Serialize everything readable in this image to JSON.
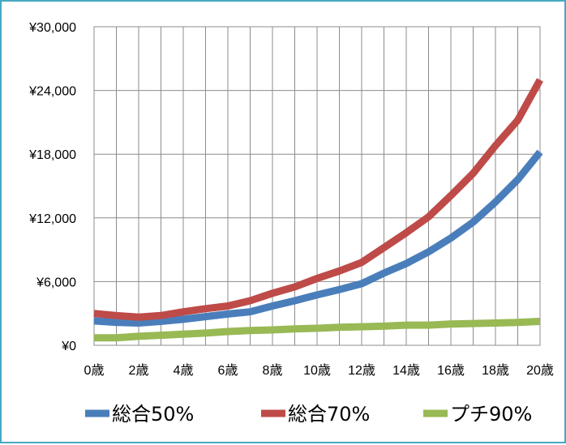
{
  "chart_data": {
    "type": "line",
    "title": "",
    "xlabel": "",
    "ylabel": "",
    "x": [
      0,
      1,
      2,
      3,
      4,
      5,
      6,
      7,
      8,
      9,
      10,
      11,
      12,
      13,
      14,
      15,
      16,
      17,
      18,
      19,
      20
    ],
    "x_tick_labels": [
      "0歳",
      "2歳",
      "4歳",
      "6歳",
      "8歳",
      "10歳",
      "12歳",
      "14歳",
      "16歳",
      "18歳",
      "20歳"
    ],
    "y_tick_labels": [
      "¥0",
      "¥6,000",
      "¥12,000",
      "¥18,000",
      "¥24,000",
      "¥30,000"
    ],
    "ylim": [
      0,
      30000
    ],
    "xlim": [
      0,
      20
    ],
    "grid": true,
    "legend_position": "bottom",
    "series": [
      {
        "name": "総合50%",
        "color": "#4a7ebb",
        "values": [
          2300,
          2150,
          2100,
          2250,
          2450,
          2700,
          2950,
          3150,
          3700,
          4200,
          4750,
          5250,
          5800,
          6800,
          7700,
          8800,
          10100,
          11600,
          13500,
          15600,
          18200
        ]
      },
      {
        "name": "総合70%",
        "color": "#be4b48",
        "values": [
          3000,
          2800,
          2650,
          2800,
          3150,
          3450,
          3700,
          4200,
          4900,
          5500,
          6300,
          7000,
          7800,
          9200,
          10600,
          12100,
          14100,
          16200,
          18800,
          21200,
          25000
        ]
      },
      {
        "name": "プチ90%",
        "color": "#98b954",
        "values": [
          700,
          700,
          850,
          950,
          1050,
          1150,
          1300,
          1400,
          1450,
          1550,
          1600,
          1700,
          1750,
          1800,
          1900,
          1900,
          2000,
          2050,
          2100,
          2150,
          2250
        ]
      }
    ]
  }
}
